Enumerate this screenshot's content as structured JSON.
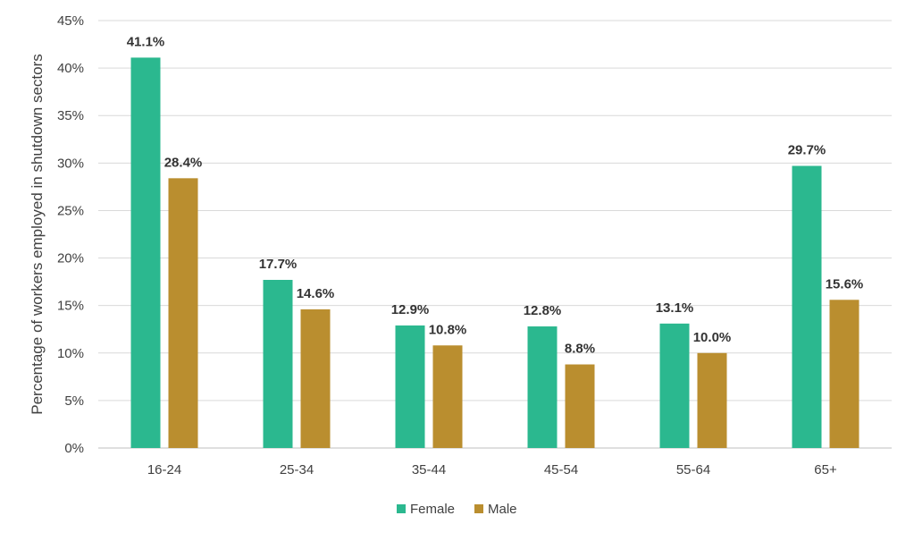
{
  "chart_data": {
    "type": "bar",
    "title": "",
    "xlabel": "",
    "ylabel": "Percentage of workers employed in shutdown sectors",
    "ylim": [
      0,
      45
    ],
    "y_ticks": [
      "0%",
      "5%",
      "10%",
      "15%",
      "20%",
      "25%",
      "30%",
      "35%",
      "40%",
      "45%"
    ],
    "y_tick_values": [
      0,
      5,
      10,
      15,
      20,
      25,
      30,
      35,
      40,
      45
    ],
    "grid": true,
    "legend_position": "bottom",
    "categories": [
      "16-24",
      "25-34",
      "35-44",
      "45-54",
      "55-64",
      "65+"
    ],
    "series": [
      {
        "name": "Female",
        "color": "#2BB88F",
        "values": [
          41.1,
          17.7,
          12.9,
          12.8,
          13.1,
          29.7
        ],
        "labels": [
          "41.1%",
          "17.7%",
          "12.9%",
          "12.8%",
          "13.1%",
          "29.7%"
        ]
      },
      {
        "name": "Male",
        "color": "#BA8E2F",
        "values": [
          28.4,
          14.6,
          10.8,
          8.8,
          10.0,
          15.6
        ],
        "labels": [
          "28.4%",
          "14.6%",
          "10.8%",
          "8.8%",
          "10.0%",
          "15.6%"
        ]
      }
    ]
  }
}
